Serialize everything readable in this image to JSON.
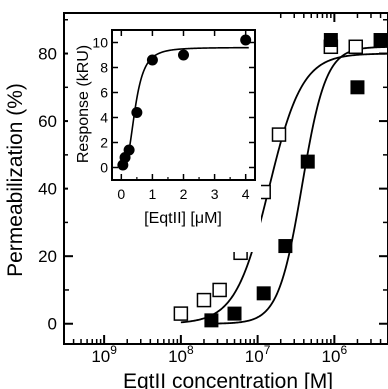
{
  "chart_data": [
    {
      "type": "scatter",
      "xscale": "log",
      "xlabel_prefix": "EqtII concentration [M]",
      "ylabel": "Permeabilization (%)",
      "xlim": [
        3e-10,
        5e-06
      ],
      "ylim": [
        -6,
        92
      ],
      "xticks": [
        1e-09,
        1e-08,
        1e-07,
        1e-06
      ],
      "xtick_labels": [
        {
          "base": "10",
          "exp": "9"
        },
        {
          "base": "10",
          "exp": "8"
        },
        {
          "base": "10",
          "exp": "7"
        },
        {
          "base": "10",
          "exp": "6"
        }
      ],
      "yticks": [
        0,
        20,
        40,
        60,
        80
      ],
      "ytick_labels": [
        "0",
        "20",
        "40",
        "60",
        "80"
      ],
      "series": [
        {
          "marker": "open-square",
          "x": [
            1e-08,
            2e-08,
            3.2e-08,
            6e-08,
            1.2e-07,
            1.9e-07,
            9e-07,
            1.9e-06
          ],
          "y": [
            3,
            7,
            10,
            21,
            39,
            56,
            82,
            82
          ],
          "fit": {
            "max": 80,
            "ec50": 1.4e-07,
            "hill": 2.0
          }
        },
        {
          "marker": "filled-square",
          "x": [
            2.5e-08,
            5e-08,
            1.2e-07,
            2.3e-07,
            4.5e-07,
            9e-07,
            2e-06,
            4e-06
          ],
          "y": [
            1,
            3,
            9,
            23,
            48,
            84,
            70,
            84
          ],
          "fit": {
            "max": 82,
            "ec50": 3.8e-07,
            "hill": 2.8
          }
        }
      ]
    },
    {
      "type": "scatter",
      "xlabel_prefix": "[EqtII] [",
      "xlabel_unit": "μM",
      "xlabel_suffix": "]",
      "ylabel": "Response (kRU)",
      "xlim": [
        -0.3,
        4.3
      ],
      "ylim": [
        -1,
        11
      ],
      "xticks": [
        0,
        1,
        2,
        3,
        4
      ],
      "xtick_labels": [
        "0",
        "1",
        "2",
        "3",
        "4"
      ],
      "yticks": [
        0,
        2,
        4,
        6,
        8,
        10
      ],
      "ytick_labels": [
        "0",
        "2",
        "4",
        "6",
        "8",
        "10"
      ],
      "series": [
        {
          "marker": "filled-circle",
          "x": [
            0.05,
            0.12,
            0.25,
            0.5,
            1.0,
            2.0,
            4.0
          ],
          "y": [
            0.2,
            0.8,
            1.4,
            4.4,
            8.6,
            9.0,
            10.2
          ],
          "fit": {
            "max": 9.6,
            "ec50": 0.45,
            "hill": 3.0
          }
        }
      ]
    }
  ]
}
